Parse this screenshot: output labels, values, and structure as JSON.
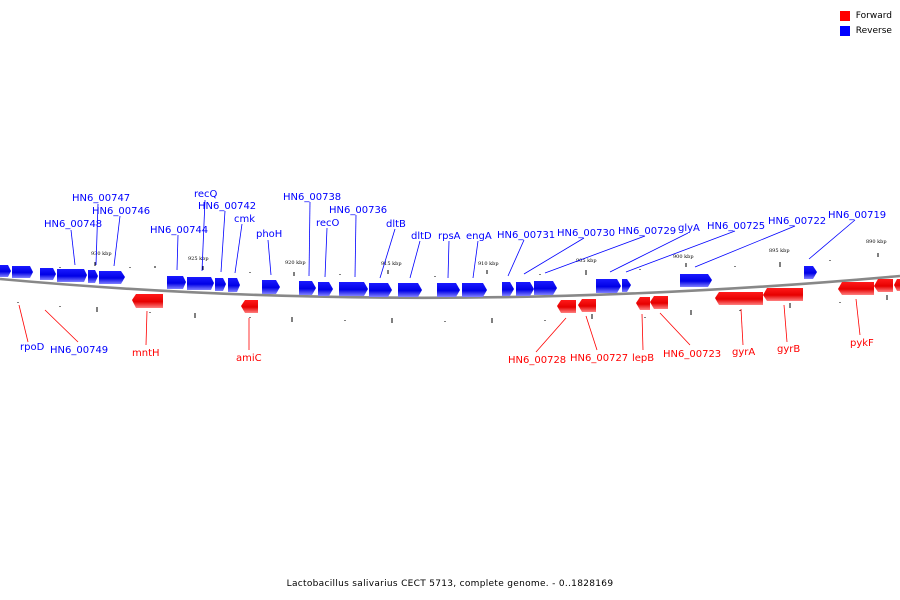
{
  "legend": [
    {
      "label": "Forward",
      "color": "#ff0000"
    },
    {
      "label": "Reverse",
      "color": "#0000ff"
    }
  ],
  "caption": "Lactobacillus salivarius CECT 5713, complete genome. - 0..1828169",
  "colors": {
    "forward": "#ff0000",
    "reverse": "#0000ff",
    "backbone": "#888888"
  },
  "ticks": [
    {
      "label": "930 kbp"
    },
    {
      "label": "925 kbp"
    },
    {
      "label": "920 kbp"
    },
    {
      "label": "915 kbp"
    },
    {
      "label": "910 kbp"
    },
    {
      "label": "905 kbp"
    },
    {
      "label": "900 kbp"
    },
    {
      "label": "895 kbp"
    },
    {
      "label": "890 kbp"
    }
  ],
  "reverse_genes": [
    "HN6_00748",
    "HN6_00747",
    "HN6_00746",
    "HN6_00744",
    "recQ",
    "HN6_00742",
    "cmk",
    "phoH",
    "HN6_00738",
    "recO",
    "HN6_00736",
    "dltB",
    "dltD",
    "rpsA",
    "engA",
    "HN6_00731",
    "HN6_00730",
    "HN6_00729",
    "glyA",
    "HN6_00725",
    "HN6_00722",
    "HN6_00719"
  ],
  "forward_genes": [
    "rpoD",
    "HN6_00749",
    "mntH",
    "amiC",
    "HN6_00728",
    "HN6_00727",
    "lepB",
    "HN6_00723",
    "gyrA",
    "gyrB",
    "pykF"
  ]
}
